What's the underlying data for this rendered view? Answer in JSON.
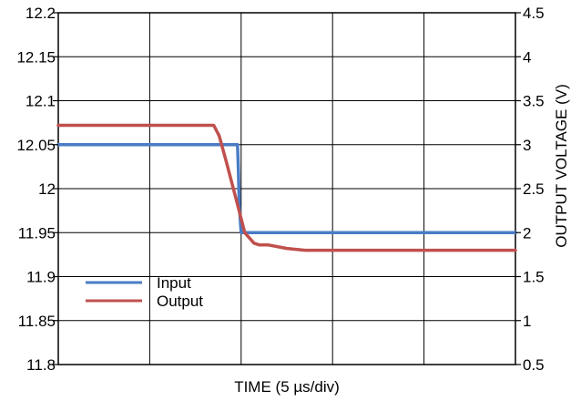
{
  "chart_data": {
    "type": "line",
    "xlabel": "TIME (5 µs/div)",
    "ylabel_left": "",
    "ylabel_right": "OUTPUT VOLTAGE (V)",
    "ylim_left": [
      11.8,
      12.2
    ],
    "yticks_left": [
      "12.2",
      "12.15",
      "12.1",
      "12.05",
      "12",
      "11.95",
      "11.9",
      "11.85",
      "11.8"
    ],
    "ylim_right": [
      0.5,
      4.5
    ],
    "yticks_right": [
      "4.5",
      "4",
      "3.5",
      "3",
      "2.5",
      "2",
      "1.5",
      "1",
      "0.5"
    ],
    "xlim": [
      0,
      25
    ],
    "grid": true,
    "legend_position": "bottom-left",
    "series": [
      {
        "name": "Input",
        "axis": "left",
        "color": "#4a7cc4",
        "x": [
          0,
          9.8,
          9.85,
          9.9,
          10.0,
          25
        ],
        "y": [
          12.05,
          12.05,
          12.02,
          11.98,
          11.95,
          11.95
        ]
      },
      {
        "name": "Output",
        "axis": "right",
        "color": "#c0504d",
        "x": [
          0,
          8.5,
          8.8,
          9.2,
          9.7,
          10.2,
          10.7,
          11.0,
          11.5,
          12.5,
          13.5,
          25
        ],
        "y": [
          3.22,
          3.22,
          3.1,
          2.8,
          2.4,
          2.0,
          1.88,
          1.86,
          1.86,
          1.82,
          1.8,
          1.8
        ]
      }
    ]
  }
}
